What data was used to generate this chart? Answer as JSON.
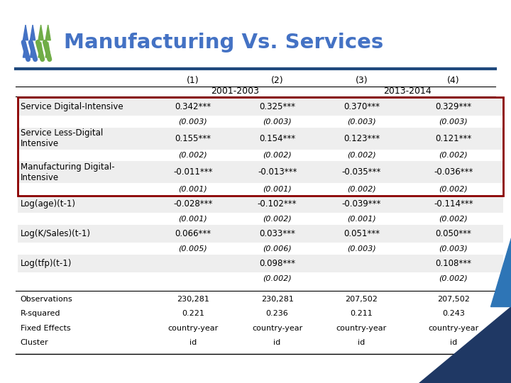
{
  "title": "Manufacturing Vs. Services",
  "rows": [
    [
      "Service Digital-Intensive",
      "0.342***",
      "0.325***",
      "0.370***",
      "0.329***"
    ],
    [
      "",
      "(0.003)",
      "(0.003)",
      "(0.003)",
      "(0.003)"
    ],
    [
      "Service Less-Digital\nIntensive",
      "0.155***",
      "0.154***",
      "0.123***",
      "0.121***"
    ],
    [
      "",
      "(0.002)",
      "(0.002)",
      "(0.002)",
      "(0.002)"
    ],
    [
      "Manufacturing Digital-\nIntensive",
      "-0.011***",
      "-0.013***",
      "-0.035***",
      "-0.036***"
    ],
    [
      "",
      "(0.001)",
      "(0.001)",
      "(0.002)",
      "(0.002)"
    ],
    [
      "Log(age)(t-1)",
      "-0.028***",
      "-0.102***",
      "-0.039***",
      "-0.114***"
    ],
    [
      "",
      "(0.001)",
      "(0.002)",
      "(0.001)",
      "(0.002)"
    ],
    [
      "Log(K/Sales)(t-1)",
      "0.066***",
      "0.033***",
      "0.051***",
      "0.050***"
    ],
    [
      "",
      "(0.005)",
      "(0.006)",
      "(0.003)",
      "(0.003)"
    ],
    [
      "Log(tfp)(t-1)",
      "",
      "0.098***",
      "",
      "0.108***"
    ],
    [
      "",
      "",
      "(0.002)",
      "",
      "(0.002)"
    ]
  ],
  "footer_rows": [
    [
      "Observations",
      "230,281",
      "230,281",
      "207,502",
      "207,502"
    ],
    [
      "R-squared",
      "0.221",
      "0.236",
      "0.211",
      "0.243"
    ],
    [
      "Fixed Effects",
      "country-year",
      "country-year",
      "country-year",
      "country-year"
    ],
    [
      "Cluster",
      "id",
      "id",
      "id",
      "id"
    ]
  ],
  "title_color": "#4472c4",
  "highlight_border_color": "#8B0000",
  "header_line_color": "#1F497D",
  "bg_color": "#ffffff",
  "gray_row_color": "#eeeeee",
  "logo_colors": [
    "#4472c4",
    "#70ad47"
  ],
  "tri_color1": "#1f3864",
  "tri_color2": "#2e75b6"
}
